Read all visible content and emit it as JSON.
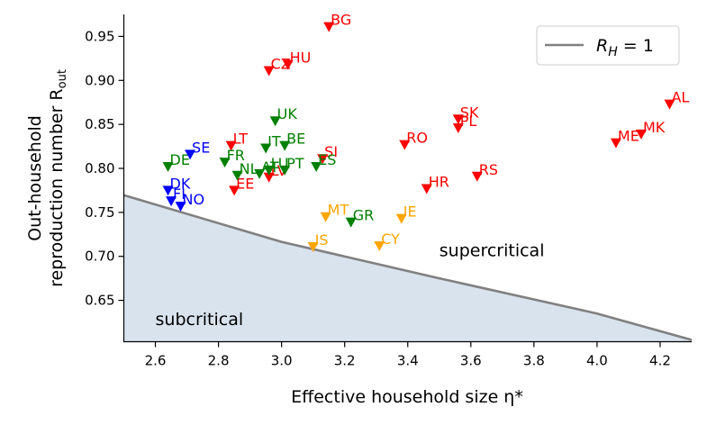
{
  "chart_data": {
    "type": "scatter",
    "xlabel": "Effective household size η*",
    "ylabel_line1": "Out-household",
    "ylabel_line2": "reproduction number R",
    "ylabel_sub": "out",
    "xlim": [
      2.5,
      4.3
    ],
    "ylim": [
      0.603,
      0.975
    ],
    "xticks": [
      "2.6",
      "2.8",
      "3.0",
      "3.2",
      "3.4",
      "3.6",
      "3.8",
      "4.0",
      "4.2"
    ],
    "yticks": [
      "0.65",
      "0.70",
      "0.75",
      "0.80",
      "0.85",
      "0.90",
      "0.95"
    ],
    "colors": {
      "red": "#ff0000",
      "green": "#008000",
      "blue": "#0000ff",
      "orange": "#ffa500",
      "threshold_line": "#808080",
      "subcritical_fill": "#d9e3ee"
    },
    "threshold": {
      "label": "R_H = 1",
      "curve": [
        [
          2.5,
          0.7695
        ],
        [
          3.0,
          0.7165
        ],
        [
          3.5,
          0.675
        ],
        [
          4.0,
          0.635
        ],
        [
          4.3,
          0.605
        ]
      ]
    },
    "regions": {
      "supercritical": "supercritical",
      "subcritical": "subcritical"
    },
    "legend": {
      "label_main": "R",
      "label_sub": "H",
      "label_rest": " = 1",
      "position": "top-right"
    },
    "series": [
      {
        "name": "red",
        "color": "#ff0000",
        "points": [
          {
            "label": "BG",
            "x": 3.15,
            "y": 0.96
          },
          {
            "label": "CZ",
            "x": 2.96,
            "y": 0.91
          },
          {
            "label": "HU",
            "x": 3.02,
            "y": 0.917
          },
          {
            "label": "LT",
            "x": 2.84,
            "y": 0.825
          },
          {
            "label": "EE",
            "x": 2.85,
            "y": 0.774
          },
          {
            "label": "LV",
            "x": 2.96,
            "y": 0.789
          },
          {
            "label": "SI",
            "x": 3.13,
            "y": 0.81
          },
          {
            "label": "RO",
            "x": 3.39,
            "y": 0.826
          },
          {
            "label": "HR",
            "x": 3.46,
            "y": 0.776
          },
          {
            "label": "SK",
            "x": 3.56,
            "y": 0.855
          },
          {
            "label": "PL",
            "x": 3.56,
            "y": 0.845
          },
          {
            "label": "RS",
            "x": 3.62,
            "y": 0.79
          },
          {
            "label": "ME",
            "x": 4.06,
            "y": 0.828
          },
          {
            "label": "MK",
            "x": 4.14,
            "y": 0.838
          },
          {
            "label": "AL",
            "x": 4.23,
            "y": 0.872
          }
        ]
      },
      {
        "name": "green",
        "color": "#008000",
        "points": [
          {
            "label": "DE",
            "x": 2.64,
            "y": 0.801
          },
          {
            "label": "FR",
            "x": 2.82,
            "y": 0.806
          },
          {
            "label": "NL",
            "x": 2.86,
            "y": 0.791
          },
          {
            "label": "AT",
            "x": 2.93,
            "y": 0.793
          },
          {
            "label": "LU",
            "x": 2.96,
            "y": 0.797
          },
          {
            "label": "PT",
            "x": 3.01,
            "y": 0.797
          },
          {
            "label": "IT",
            "x": 2.95,
            "y": 0.822
          },
          {
            "label": "BE",
            "x": 3.01,
            "y": 0.825
          },
          {
            "label": "UK",
            "x": 2.98,
            "y": 0.853
          },
          {
            "label": "ES",
            "x": 3.11,
            "y": 0.801
          },
          {
            "label": "GR",
            "x": 3.22,
            "y": 0.738
          }
        ]
      },
      {
        "name": "blue",
        "color": "#0000ff",
        "points": [
          {
            "label": "SE",
            "x": 2.71,
            "y": 0.815
          },
          {
            "label": "DK",
            "x": 2.64,
            "y": 0.774
          },
          {
            "label": "FI",
            "x": 2.65,
            "y": 0.762
          },
          {
            "label": "NO",
            "x": 2.68,
            "y": 0.756
          }
        ]
      },
      {
        "name": "orange",
        "color": "#ffa500",
        "points": [
          {
            "label": "MT",
            "x": 3.14,
            "y": 0.744
          },
          {
            "label": "IE",
            "x": 3.38,
            "y": 0.742
          },
          {
            "label": "IS",
            "x": 3.1,
            "y": 0.71
          },
          {
            "label": "CY",
            "x": 3.31,
            "y": 0.711
          }
        ]
      }
    ]
  }
}
